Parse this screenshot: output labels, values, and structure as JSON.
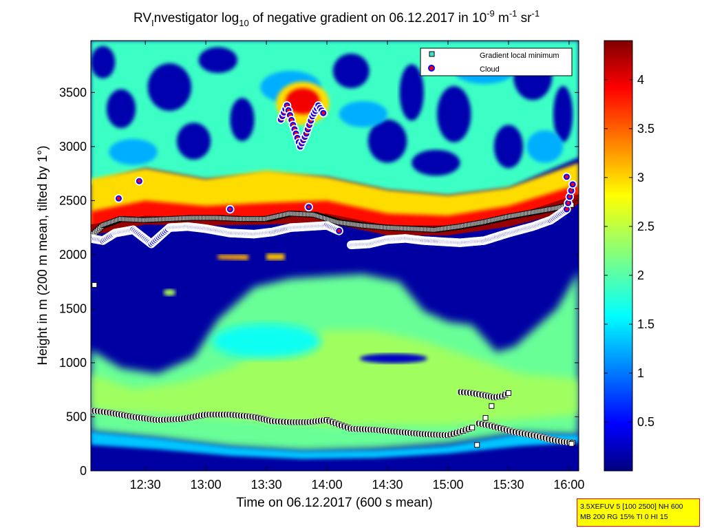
{
  "chart_data": {
    "type": "heatmap",
    "title_parts": {
      "p1": "RV",
      "p1_sub": "I",
      "p2": "nvestigator log",
      "p2_sub": "10",
      "p3": " of negative gradient on 06.12.2017 in 10",
      "p3_sup": "-9",
      "p4": " m",
      "p4_sup": "-1",
      "p5": " sr",
      "p5_sup": "-1"
    },
    "xlabel": "Time on 06.12.2017 (600 s mean)",
    "ylabel": "Height in m (200 m mean, tilted by 1°)",
    "xlim_hours": [
      12.05,
      16.08
    ],
    "ylim": [
      0,
      3980
    ],
    "x_ticks": [
      {
        "value": 12.5,
        "label": "12:30"
      },
      {
        "value": 13.0,
        "label": "13:00"
      },
      {
        "value": 13.5,
        "label": "13:30"
      },
      {
        "value": 14.0,
        "label": "14:00"
      },
      {
        "value": 14.5,
        "label": "14:30"
      },
      {
        "value": 15.0,
        "label": "15:00"
      },
      {
        "value": 15.5,
        "label": "15:30"
      },
      {
        "value": 16.0,
        "label": "16:00"
      }
    ],
    "y_ticks": [
      {
        "value": 0,
        "label": "0"
      },
      {
        "value": 500,
        "label": "500"
      },
      {
        "value": 1000,
        "label": "1000"
      },
      {
        "value": 1500,
        "label": "1500"
      },
      {
        "value": 2000,
        "label": "2000"
      },
      {
        "value": 2500,
        "label": "2500"
      },
      {
        "value": 3000,
        "label": "3000"
      },
      {
        "value": 3500,
        "label": "3500"
      }
    ],
    "colorbar": {
      "colormap": "jet",
      "clim": [
        0.0,
        4.4
      ],
      "ticks": [
        {
          "value": 0.5,
          "label": "0.5"
        },
        {
          "value": 1.0,
          "label": "1"
        },
        {
          "value": 1.5,
          "label": "1.5"
        },
        {
          "value": 2.0,
          "label": "2"
        },
        {
          "value": 2.5,
          "label": "2.5"
        },
        {
          "value": 3.0,
          "label": "3"
        },
        {
          "value": 3.5,
          "label": "3.5"
        },
        {
          "value": 4.0,
          "label": "4"
        }
      ]
    },
    "legend": {
      "position": "top-right",
      "entries": [
        {
          "label": "Gradient local minimum",
          "marker": "square",
          "color": "#40e0d0",
          "edge": "#000000"
        },
        {
          "label": "Cloud",
          "marker": "circle",
          "color": "#ff0000",
          "edge": "#0000ff"
        }
      ]
    },
    "series": [
      {
        "label_ref": "Gradient local minimum",
        "marker": "square",
        "segments": [
          {
            "x": [
              12.05,
              12.2,
              12.4,
              12.6,
              12.8,
              13.0,
              13.2,
              13.4,
              13.55,
              13.7,
              13.85,
              14.0,
              14.1,
              14.2,
              14.4,
              14.6,
              14.8,
              15.0,
              15.1,
              15.2
            ],
            "y": [
              560,
              540,
              500,
              470,
              480,
              520,
              520,
              500,
              460,
              450,
              450,
              470,
              430,
              390,
              380,
              360,
              340,
              330,
              360,
              400
            ]
          },
          {
            "x": [
              15.25,
              15.35,
              15.45,
              15.55,
              15.65,
              15.75,
              15.85,
              15.95,
              16.03
            ],
            "y": [
              440,
              420,
              390,
              360,
              340,
              320,
              290,
              270,
              260
            ]
          },
          {
            "x": [
              15.1,
              15.2,
              15.3,
              15.38,
              15.45,
              15.5
            ],
            "y": [
              730,
              720,
              700,
              680,
              690,
              720
            ]
          },
          {
            "x": [
              12.06,
              12.15,
              12.3,
              12.5,
              12.7,
              12.9,
              13.1,
              13.3,
              13.5,
              13.7,
              13.9,
              14.1,
              14.3,
              14.5,
              14.7,
              14.9,
              15.1,
              15.3,
              15.5,
              15.7,
              15.9,
              16.02
            ],
            "y": [
              2180,
              2270,
              2330,
              2320,
              2330,
              2340,
              2340,
              2330,
              2330,
              2380,
              2370,
              2300,
              2270,
              2250,
              2240,
              2230,
              2260,
              2300,
              2350,
              2390,
              2430,
              2460
            ]
          }
        ],
        "isolated": [
          {
            "x": 12.08,
            "y": 1720
          },
          {
            "x": 15.24,
            "y": 240
          },
          {
            "x": 15.31,
            "y": 490
          },
          {
            "x": 15.36,
            "y": 600
          },
          {
            "x": 16.02,
            "y": 250
          }
        ]
      },
      {
        "label_ref": "Cloud",
        "marker": "circle",
        "segments": [
          {
            "x": [
              12.05,
              12.15,
              12.25,
              12.4,
              12.55,
              12.7,
              12.85,
              13.0,
              13.2,
              13.4,
              13.55,
              13.7,
              13.85,
              14.0,
              14.1
            ],
            "y": [
              2150,
              2130,
              2200,
              2230,
              2100,
              2250,
              2260,
              2240,
              2200,
              2190,
              2210,
              2250,
              2260,
              2270,
              2220
            ]
          },
          {
            "x": [
              14.2,
              14.35,
              14.5,
              14.65,
              14.8,
              14.95,
              15.1,
              15.3,
              15.5,
              15.7,
              15.85,
              15.98,
              16.03
            ],
            "y": [
              2090,
              2100,
              2140,
              2150,
              2130,
              2120,
              2110,
              2130,
              2200,
              2260,
              2320,
              2420,
              2650
            ]
          },
          {
            "x": [
              13.62,
              13.67,
              13.72,
              13.78,
              13.83,
              13.88,
              13.93,
              13.97
            ],
            "y": [
              3250,
              3380,
              3200,
              3000,
              3120,
              3280,
              3380,
              3310
            ]
          }
        ],
        "isolated": [
          {
            "x": 12.28,
            "y": 2520
          },
          {
            "x": 12.45,
            "y": 2680
          },
          {
            "x": 13.2,
            "y": 2420
          },
          {
            "x": 13.85,
            "y": 2440
          },
          {
            "x": 15.98,
            "y": 2720
          }
        ]
      }
    ]
  },
  "info_box": {
    "line1": "3.5XEFUV 5 [100 2500] NH 600",
    "line2": "MB 200 RG 15% TI 0 HI 15"
  }
}
